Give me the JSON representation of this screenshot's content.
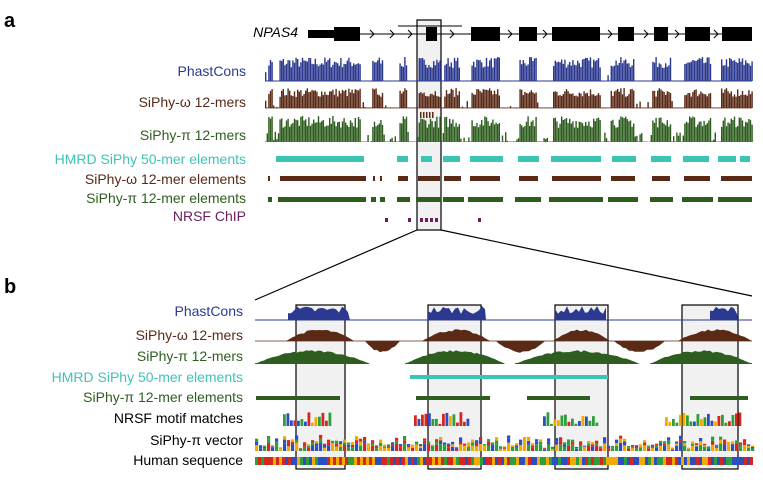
{
  "panels": {
    "a": {
      "letter": "a"
    },
    "b": {
      "letter": "b"
    }
  },
  "gene": {
    "name": "NPAS4"
  },
  "tracks_a": [
    {
      "key": "phastcons",
      "label": "PhastCons",
      "color": "#2b3990"
    },
    {
      "key": "siphy_omega",
      "label": "SiPhy-ω 12-mers",
      "color": "#5a2a16"
    },
    {
      "key": "siphy_pi",
      "label": "SiPhy-π 12-mers",
      "color": "#2e5e1f"
    },
    {
      "key": "hmrd",
      "label": "HMRD SiPhy 50-mer elements",
      "color": "#3ec4b4"
    },
    {
      "key": "omega_elements",
      "label": "SiPhy-ω 12-mer elements",
      "color": "#5a2a16"
    },
    {
      "key": "pi_elements",
      "label": "SiPhy-π 12-mer elements",
      "color": "#2e5e1f"
    },
    {
      "key": "nrsf_chip",
      "label": "NRSF ChIP",
      "color": "#6b1e5c"
    }
  ],
  "tracks_b": [
    {
      "key": "phastcons",
      "label": "PhastCons",
      "color": "#2b3990"
    },
    {
      "key": "siphy_omega",
      "label": "SiPhy-ω 12-mers",
      "color": "#5a2a16"
    },
    {
      "key": "siphy_pi",
      "label": "SiPhy-π 12-mers",
      "color": "#2e5e1f"
    },
    {
      "key": "hmrd",
      "label": "HMRD SiPhy 50-mer elements",
      "color": "#3ec4b4"
    },
    {
      "key": "pi_elements",
      "label": "SiPhy-π 12-mer elements",
      "color": "#2e5e1f"
    },
    {
      "key": "nrsf_motif",
      "label": "NRSF motif matches",
      "color": "#000000"
    },
    {
      "key": "pi_vector",
      "label": "SiPhy-π vector",
      "color": "#000000"
    },
    {
      "key": "human_seq",
      "label": "Human sequence",
      "color": "#000000"
    }
  ],
  "base_colors": {
    "A": "#2e9e3a",
    "C": "#2b4fc2",
    "G": "#f2a900",
    "T": "#d7261e"
  }
}
